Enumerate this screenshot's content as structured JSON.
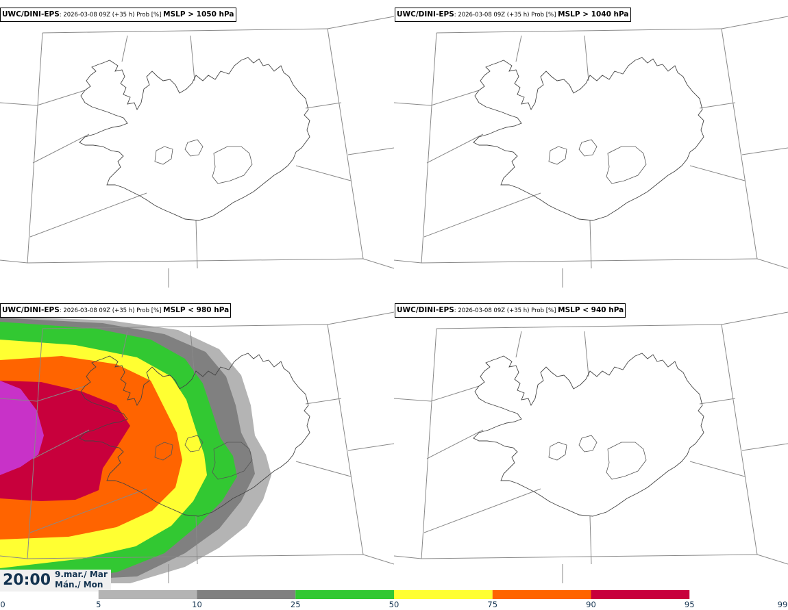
{
  "panels": [
    {
      "model": "UWC/DINI-EPS",
      "meta": ": 2026-03-08 09Z (+35 h) Prob [%] ",
      "field": "MSLP > 1050 hPa",
      "has_fill": false
    },
    {
      "model": "UWC/DINI-EPS",
      "meta": ": 2026-03-08 09Z (+35 h) Prob [%] ",
      "field": "MSLP > 1040 hPa",
      "has_fill": false
    },
    {
      "model": "UWC/DINI-EPS",
      "meta": ": 2026-03-08 09Z (+35 h) Prob [%] ",
      "field": "MSLP < 980 hPa",
      "has_fill": true
    },
    {
      "model": "UWC/DINI-EPS",
      "meta": ": 2026-03-08 09Z (+35 h) Prob [%] ",
      "field": "MSLP < 940 hPa",
      "has_fill": false
    }
  ],
  "valid_time": {
    "time": "20:00",
    "date": "9.mar./ Mar",
    "day": "Mán./ Mon"
  },
  "colorbar": {
    "ticks": [
      "0",
      "5",
      "10",
      "25",
      "50",
      "75",
      "90",
      "95",
      "99"
    ],
    "colors": [
      "#ffffff",
      "#b4b4b4",
      "#808080",
      "#32c832",
      "#ffff32",
      "#ff6400",
      "#c8003c",
      "#c832c8",
      "#f0b4f0"
    ]
  }
}
